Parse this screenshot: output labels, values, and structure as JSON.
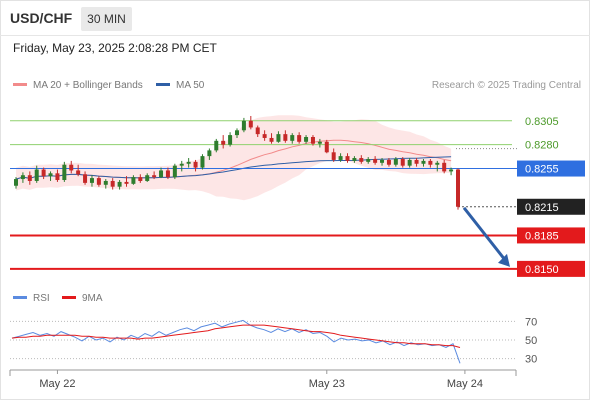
{
  "header": {
    "symbol": "USD/CHF",
    "timeframe": "30 MIN",
    "datetime": "Friday, May 23, 2025 2:08:28 PM CET",
    "credit": "Research © 2025 Trading Central"
  },
  "legend": {
    "ma20": "MA 20 + Bollinger Bands",
    "ma50": "MA 50",
    "rsi": "RSI",
    "rsi_ma": "9MA"
  },
  "colors": {
    "ma20": "#f28b8b",
    "ma50": "#2f5fa6",
    "band": "#fde2e2",
    "bull": "#2e7d2e",
    "bear": "#c62828",
    "support": "#e31a1c",
    "pivot": "#2f6fe0",
    "resistance": "#8fd16e",
    "arrow": "#2f5fa6",
    "rsi": "#5b8be0",
    "rsi_ma": "#e31a1c"
  },
  "chart_data": [
    {
      "type": "candlestick",
      "yrange": [
        0.813,
        0.8333
      ],
      "levels": [
        {
          "value": 0.8305,
          "label": "0.8305",
          "kind": "resistance"
        },
        {
          "value": 0.828,
          "label": "0.8280",
          "kind": "resistance"
        },
        {
          "value": 0.8255,
          "label": "0.8255",
          "kind": "pivot"
        },
        {
          "value": 0.8215,
          "label": "0.8215",
          "kind": "current"
        },
        {
          "value": 0.8185,
          "label": "0.8185",
          "kind": "support"
        },
        {
          "value": 0.815,
          "label": "0.8150",
          "kind": "support"
        }
      ],
      "x_labels": [
        {
          "index": 6,
          "label": "May 22"
        },
        {
          "index": 45,
          "label": "May 23"
        },
        {
          "index": 65,
          "label": "May 24"
        }
      ],
      "candles": [
        [
          0.8237,
          0.8246,
          0.8234,
          0.8244
        ],
        [
          0.8244,
          0.8251,
          0.824,
          0.8248
        ],
        [
          0.8248,
          0.8252,
          0.8238,
          0.8242
        ],
        [
          0.8242,
          0.8258,
          0.824,
          0.8254
        ],
        [
          0.8254,
          0.8256,
          0.8244,
          0.8247
        ],
        [
          0.8247,
          0.8252,
          0.8242,
          0.825
        ],
        [
          0.825,
          0.8254,
          0.8241,
          0.8243
        ],
        [
          0.8243,
          0.8262,
          0.8241,
          0.8259
        ],
        [
          0.8259,
          0.8263,
          0.825,
          0.8253
        ],
        [
          0.8253,
          0.8259,
          0.8247,
          0.8249
        ],
        [
          0.8249,
          0.8252,
          0.8238,
          0.824
        ],
        [
          0.824,
          0.8248,
          0.8236,
          0.8245
        ],
        [
          0.8245,
          0.8247,
          0.8236,
          0.8238
        ],
        [
          0.8238,
          0.8244,
          0.8234,
          0.8242
        ],
        [
          0.8242,
          0.8245,
          0.8233,
          0.8236
        ],
        [
          0.8236,
          0.8243,
          0.8233,
          0.8241
        ],
        [
          0.8241,
          0.8247,
          0.8236,
          0.8239
        ],
        [
          0.8239,
          0.8248,
          0.8238,
          0.8246
        ],
        [
          0.8246,
          0.8249,
          0.824,
          0.8242
        ],
        [
          0.8242,
          0.825,
          0.8241,
          0.8248
        ],
        [
          0.8248,
          0.8252,
          0.8244,
          0.8246
        ],
        [
          0.8246,
          0.8256,
          0.8245,
          0.8253
        ],
        [
          0.8253,
          0.8256,
          0.8244,
          0.8246
        ],
        [
          0.8246,
          0.826,
          0.8244,
          0.8258
        ],
        [
          0.8258,
          0.8263,
          0.8252,
          0.826
        ],
        [
          0.826,
          0.8266,
          0.8256,
          0.8262
        ],
        [
          0.8262,
          0.8264,
          0.8252,
          0.8256
        ],
        [
          0.8256,
          0.827,
          0.8254,
          0.8268
        ],
        [
          0.8268,
          0.8276,
          0.8264,
          0.8274
        ],
        [
          0.8274,
          0.8286,
          0.8272,
          0.8284
        ],
        [
          0.8284,
          0.829,
          0.8276,
          0.828
        ],
        [
          0.828,
          0.8293,
          0.8278,
          0.829
        ],
        [
          0.829,
          0.8297,
          0.8287,
          0.8295
        ],
        [
          0.8295,
          0.8308,
          0.8293,
          0.8305
        ],
        [
          0.8305,
          0.831,
          0.8296,
          0.8298
        ],
        [
          0.8298,
          0.83,
          0.8288,
          0.8291
        ],
        [
          0.8291,
          0.8295,
          0.8284,
          0.8287
        ],
        [
          0.8287,
          0.8292,
          0.8281,
          0.8283
        ],
        [
          0.8283,
          0.8294,
          0.8282,
          0.8291
        ],
        [
          0.8291,
          0.8295,
          0.8282,
          0.8284
        ],
        [
          0.8284,
          0.8292,
          0.8281,
          0.829
        ],
        [
          0.829,
          0.8293,
          0.8281,
          0.8283
        ],
        [
          0.8283,
          0.829,
          0.8281,
          0.8288
        ],
        [
          0.8288,
          0.829,
          0.8279,
          0.8281
        ],
        [
          0.8281,
          0.8286,
          0.8277,
          0.8283
        ],
        [
          0.8283,
          0.8285,
          0.8271,
          0.8272
        ],
        [
          0.8272,
          0.8276,
          0.8262,
          0.8264
        ],
        [
          0.8264,
          0.8271,
          0.8262,
          0.8268
        ],
        [
          0.8268,
          0.8271,
          0.8261,
          0.8263
        ],
        [
          0.8263,
          0.8268,
          0.8261,
          0.8266
        ],
        [
          0.8266,
          0.8269,
          0.826,
          0.8262
        ],
        [
          0.8262,
          0.8267,
          0.826,
          0.8265
        ],
        [
          0.8265,
          0.8268,
          0.8259,
          0.8261
        ],
        [
          0.8261,
          0.8266,
          0.8258,
          0.8264
        ],
        [
          0.8264,
          0.8266,
          0.8257,
          0.8259
        ],
        [
          0.8259,
          0.8267,
          0.8257,
          0.8265
        ],
        [
          0.8265,
          0.8267,
          0.8256,
          0.8258
        ],
        [
          0.8258,
          0.8266,
          0.8256,
          0.8264
        ],
        [
          0.8264,
          0.8266,
          0.8257,
          0.826
        ],
        [
          0.826,
          0.8265,
          0.8257,
          0.8263
        ],
        [
          0.8263,
          0.8265,
          0.8256,
          0.8259
        ],
        [
          0.8259,
          0.8263,
          0.8252,
          0.8261
        ],
        [
          0.8261,
          0.8264,
          0.825,
          0.8252
        ],
        [
          0.8252,
          0.8256,
          0.8248,
          0.8254
        ],
        [
          0.8254,
          0.8255,
          0.8212,
          0.8215
        ]
      ]
    },
    {
      "type": "line",
      "yrange": [
        20,
        80
      ],
      "ticks": [
        {
          "value": 70,
          "label": "70"
        },
        {
          "value": 50,
          "label": "50"
        },
        {
          "value": 30,
          "label": "30"
        }
      ],
      "series": [
        {
          "name": "RSI",
          "values": [
            52,
            54,
            56,
            58,
            55,
            57,
            54,
            59,
            56,
            53,
            49,
            54,
            50,
            52,
            48,
            53,
            50,
            55,
            52,
            57,
            54,
            59,
            55,
            58,
            61,
            63,
            60,
            64,
            66,
            68,
            64,
            67,
            69,
            71,
            66,
            63,
            61,
            58,
            62,
            59,
            62,
            58,
            61,
            57,
            58,
            54,
            48,
            52,
            50,
            51,
            49,
            50,
            47,
            49,
            45,
            48,
            44,
            47,
            45,
            46,
            44,
            45,
            42,
            46,
            25
          ]
        },
        {
          "name": "9MA",
          "values": [
            52,
            53,
            53,
            54,
            54,
            55,
            55,
            55,
            55,
            55,
            54,
            54,
            53,
            53,
            52,
            52,
            52,
            52,
            51,
            52,
            52,
            53,
            54,
            55,
            56,
            57,
            58,
            59,
            60,
            62,
            63,
            64,
            65,
            66,
            66,
            66,
            66,
            65,
            64,
            63,
            62,
            61,
            60,
            59,
            59,
            58,
            57,
            55,
            54,
            53,
            52,
            51,
            50,
            49,
            48,
            47,
            47,
            46,
            46,
            46,
            45,
            45,
            44,
            44,
            42
          ]
        }
      ]
    }
  ]
}
